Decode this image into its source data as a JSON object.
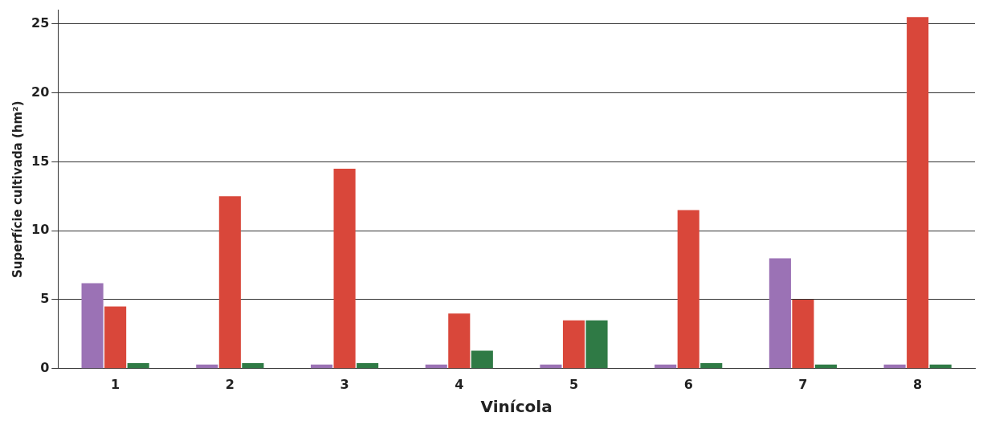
{
  "chart_data": {
    "type": "bar",
    "xlabel": "Vinícola",
    "ylabel": "Superfície cultivada (hm²)",
    "categories": [
      "1",
      "2",
      "3",
      "4",
      "5",
      "6",
      "7",
      "8"
    ],
    "series": [
      {
        "color": "#9b72b5",
        "values": [
          6.2,
          0.3,
          0.3,
          0.3,
          0.3,
          0.3,
          8,
          0.3
        ]
      },
      {
        "color": "#d9473a",
        "values": [
          4.5,
          12.5,
          14.5,
          4,
          3.5,
          11.5,
          5,
          25.5
        ]
      },
      {
        "color": "#2f7a45",
        "values": [
          0.4,
          0.4,
          0.4,
          1.3,
          3.5,
          0.4,
          0.3,
          0.3
        ]
      }
    ],
    "ylim": [
      0,
      26
    ],
    "yticks": [
      0,
      5,
      10,
      15,
      20,
      25
    ],
    "grid": "y",
    "legend": false
  }
}
